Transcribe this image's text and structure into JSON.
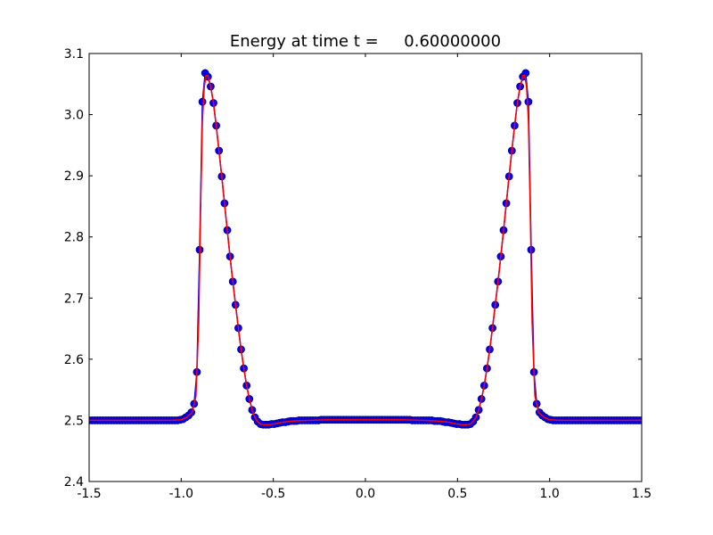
{
  "chart_data": {
    "type": "line",
    "title": "Energy at time t =     0.60000000",
    "xlabel": "",
    "ylabel": "",
    "xlim": [
      -1.5,
      1.5
    ],
    "ylim": [
      2.4,
      3.1
    ],
    "grid": false,
    "x_ticks": [
      "-1.5",
      "-1.0",
      "-0.5",
      "0.0",
      "0.5",
      "1.0",
      "1.5"
    ],
    "y_ticks": [
      "2.4",
      "2.5",
      "2.6",
      "2.7",
      "2.8",
      "2.9",
      "3.0",
      "3.1"
    ],
    "x_tick_values": [
      -1.5,
      -1.0,
      -0.5,
      0.0,
      0.5,
      1.0,
      1.5
    ],
    "y_tick_values": [
      2.4,
      2.5,
      2.6,
      2.7,
      2.8,
      2.9,
      3.0,
      3.1
    ],
    "colors": {
      "markers_fill": "#0000ff",
      "markers_edge": "#000080",
      "reference_line": "#ff0000",
      "line_blue": "#0000ff"
    },
    "series": [
      {
        "style": "line+markers",
        "color": "#0000ff",
        "points": [
          [
            -1.5,
            2.5
          ],
          [
            -1.485,
            2.5
          ],
          [
            -1.47,
            2.5
          ],
          [
            -1.455,
            2.5
          ],
          [
            -1.44,
            2.5
          ],
          [
            -1.425,
            2.5
          ],
          [
            -1.41,
            2.5
          ],
          [
            -1.395,
            2.5
          ],
          [
            -1.38,
            2.5
          ],
          [
            -1.365,
            2.5
          ],
          [
            -1.35,
            2.5
          ],
          [
            -1.335,
            2.5
          ],
          [
            -1.32,
            2.5
          ],
          [
            -1.305,
            2.5
          ],
          [
            -1.29,
            2.5
          ],
          [
            -1.275,
            2.5
          ],
          [
            -1.26,
            2.5
          ],
          [
            -1.245,
            2.5
          ],
          [
            -1.23,
            2.5
          ],
          [
            -1.215,
            2.5
          ],
          [
            -1.2,
            2.5
          ],
          [
            -1.185,
            2.5
          ],
          [
            -1.17,
            2.5
          ],
          [
            -1.155,
            2.5
          ],
          [
            -1.14,
            2.5
          ],
          [
            -1.125,
            2.5
          ],
          [
            -1.11,
            2.5
          ],
          [
            -1.095,
            2.5
          ],
          [
            -1.08,
            2.5
          ],
          [
            -1.065,
            2.5
          ],
          [
            -1.05,
            2.5
          ],
          [
            -1.035,
            2.5
          ],
          [
            -1.02,
            2.5
          ],
          [
            -1.005,
            2.501
          ],
          [
            -0.99,
            2.502
          ],
          [
            -0.975,
            2.505
          ],
          [
            -0.96,
            2.508
          ],
          [
            -0.945,
            2.513
          ],
          [
            -0.93,
            2.527
          ],
          [
            -0.915,
            2.579
          ],
          [
            -0.9,
            2.779
          ],
          [
            -0.885,
            3.021
          ],
          [
            -0.87,
            3.068
          ],
          [
            -0.855,
            3.062
          ],
          [
            -0.84,
            3.046
          ],
          [
            -0.825,
            3.019
          ],
          [
            -0.81,
            2.982
          ],
          [
            -0.795,
            2.941
          ],
          [
            -0.78,
            2.899
          ],
          [
            -0.765,
            2.855
          ],
          [
            -0.75,
            2.811
          ],
          [
            -0.735,
            2.768
          ],
          [
            -0.72,
            2.727
          ],
          [
            -0.705,
            2.689
          ],
          [
            -0.69,
            2.651
          ],
          [
            -0.675,
            2.616
          ],
          [
            -0.66,
            2.585
          ],
          [
            -0.645,
            2.557
          ],
          [
            -0.63,
            2.535
          ],
          [
            -0.615,
            2.517
          ],
          [
            -0.6,
            2.505
          ],
          [
            -0.585,
            2.498
          ],
          [
            -0.57,
            2.494
          ],
          [
            -0.555,
            2.493
          ],
          [
            -0.54,
            2.493
          ],
          [
            -0.525,
            2.493
          ],
          [
            -0.51,
            2.494
          ],
          [
            -0.495,
            2.494
          ],
          [
            -0.48,
            2.495
          ],
          [
            -0.465,
            2.496
          ],
          [
            -0.45,
            2.497
          ],
          [
            -0.435,
            2.497
          ],
          [
            -0.42,
            2.498
          ],
          [
            -0.405,
            2.499
          ],
          [
            -0.39,
            2.499
          ],
          [
            -0.375,
            2.499
          ],
          [
            -0.36,
            2.5
          ],
          [
            -0.345,
            2.5
          ],
          [
            -0.33,
            2.5
          ],
          [
            -0.315,
            2.5
          ],
          [
            -0.3,
            2.5
          ],
          [
            -0.285,
            2.5
          ],
          [
            -0.27,
            2.5
          ],
          [
            -0.255,
            2.5
          ],
          [
            -0.24,
            2.501
          ],
          [
            -0.225,
            2.501
          ],
          [
            -0.21,
            2.501
          ],
          [
            -0.195,
            2.501
          ],
          [
            -0.18,
            2.501
          ],
          [
            -0.165,
            2.501
          ],
          [
            -0.15,
            2.501
          ],
          [
            -0.135,
            2.501
          ],
          [
            -0.12,
            2.501
          ],
          [
            -0.105,
            2.501
          ],
          [
            -0.09,
            2.501
          ],
          [
            -0.075,
            2.501
          ],
          [
            -0.06,
            2.501
          ],
          [
            -0.045,
            2.501
          ],
          [
            -0.03,
            2.501
          ],
          [
            -0.015,
            2.501
          ],
          [
            0.0,
            2.501
          ],
          [
            0.015,
            2.501
          ],
          [
            0.03,
            2.501
          ],
          [
            0.045,
            2.501
          ],
          [
            0.06,
            2.501
          ],
          [
            0.075,
            2.501
          ],
          [
            0.09,
            2.501
          ],
          [
            0.105,
            2.501
          ],
          [
            0.12,
            2.501
          ],
          [
            0.135,
            2.501
          ],
          [
            0.15,
            2.501
          ],
          [
            0.165,
            2.501
          ],
          [
            0.18,
            2.501
          ],
          [
            0.195,
            2.501
          ],
          [
            0.21,
            2.501
          ],
          [
            0.225,
            2.501
          ],
          [
            0.24,
            2.501
          ],
          [
            0.255,
            2.5
          ],
          [
            0.27,
            2.5
          ],
          [
            0.285,
            2.5
          ],
          [
            0.3,
            2.5
          ],
          [
            0.315,
            2.5
          ],
          [
            0.33,
            2.5
          ],
          [
            0.345,
            2.5
          ],
          [
            0.36,
            2.5
          ],
          [
            0.375,
            2.499
          ],
          [
            0.39,
            2.499
          ],
          [
            0.405,
            2.499
          ],
          [
            0.42,
            2.498
          ],
          [
            0.435,
            2.497
          ],
          [
            0.45,
            2.497
          ],
          [
            0.465,
            2.496
          ],
          [
            0.48,
            2.495
          ],
          [
            0.495,
            2.494
          ],
          [
            0.51,
            2.494
          ],
          [
            0.525,
            2.493
          ],
          [
            0.54,
            2.493
          ],
          [
            0.555,
            2.493
          ],
          [
            0.57,
            2.494
          ],
          [
            0.585,
            2.498
          ],
          [
            0.6,
            2.505
          ],
          [
            0.615,
            2.517
          ],
          [
            0.63,
            2.535
          ],
          [
            0.645,
            2.557
          ],
          [
            0.66,
            2.585
          ],
          [
            0.675,
            2.616
          ],
          [
            0.69,
            2.651
          ],
          [
            0.705,
            2.689
          ],
          [
            0.72,
            2.727
          ],
          [
            0.735,
            2.768
          ],
          [
            0.75,
            2.811
          ],
          [
            0.765,
            2.855
          ],
          [
            0.78,
            2.899
          ],
          [
            0.795,
            2.941
          ],
          [
            0.81,
            2.982
          ],
          [
            0.825,
            3.019
          ],
          [
            0.84,
            3.046
          ],
          [
            0.855,
            3.062
          ],
          [
            0.87,
            3.068
          ],
          [
            0.885,
            3.021
          ],
          [
            0.9,
            2.779
          ],
          [
            0.915,
            2.579
          ],
          [
            0.93,
            2.527
          ],
          [
            0.945,
            2.513
          ],
          [
            0.96,
            2.508
          ],
          [
            0.975,
            2.505
          ],
          [
            0.99,
            2.502
          ],
          [
            1.005,
            2.501
          ],
          [
            1.02,
            2.5
          ],
          [
            1.035,
            2.5
          ],
          [
            1.05,
            2.5
          ],
          [
            1.065,
            2.5
          ],
          [
            1.08,
            2.5
          ],
          [
            1.095,
            2.5
          ],
          [
            1.11,
            2.5
          ],
          [
            1.125,
            2.5
          ],
          [
            1.14,
            2.5
          ],
          [
            1.155,
            2.5
          ],
          [
            1.17,
            2.5
          ],
          [
            1.185,
            2.5
          ],
          [
            1.2,
            2.5
          ],
          [
            1.215,
            2.5
          ],
          [
            1.23,
            2.5
          ],
          [
            1.245,
            2.5
          ],
          [
            1.26,
            2.5
          ],
          [
            1.275,
            2.5
          ],
          [
            1.29,
            2.5
          ],
          [
            1.305,
            2.5
          ],
          [
            1.32,
            2.5
          ],
          [
            1.335,
            2.5
          ],
          [
            1.35,
            2.5
          ],
          [
            1.365,
            2.5
          ],
          [
            1.38,
            2.5
          ],
          [
            1.395,
            2.5
          ],
          [
            1.41,
            2.5
          ],
          [
            1.425,
            2.5
          ],
          [
            1.44,
            2.5
          ],
          [
            1.455,
            2.5
          ],
          [
            1.47,
            2.5
          ],
          [
            1.485,
            2.5
          ],
          [
            1.5,
            2.5
          ]
        ]
      },
      {
        "style": "line",
        "color": "#ff0000",
        "points": [
          [
            -1.5,
            2.5
          ],
          [
            -1.05,
            2.5
          ],
          [
            -1.0,
            2.501
          ],
          [
            -0.97,
            2.505
          ],
          [
            -0.94,
            2.513
          ],
          [
            -0.92,
            2.54
          ],
          [
            -0.905,
            2.66
          ],
          [
            -0.895,
            2.84
          ],
          [
            -0.885,
            2.99
          ],
          [
            -0.875,
            3.045
          ],
          [
            -0.865,
            3.064
          ],
          [
            -0.855,
            3.064
          ],
          [
            -0.84,
            3.046
          ],
          [
            -0.825,
            3.019
          ],
          [
            -0.81,
            2.982
          ],
          [
            -0.795,
            2.941
          ],
          [
            -0.78,
            2.899
          ],
          [
            -0.765,
            2.855
          ],
          [
            -0.75,
            2.811
          ],
          [
            -0.735,
            2.768
          ],
          [
            -0.72,
            2.727
          ],
          [
            -0.705,
            2.689
          ],
          [
            -0.69,
            2.651
          ],
          [
            -0.675,
            2.616
          ],
          [
            -0.66,
            2.585
          ],
          [
            -0.645,
            2.557
          ],
          [
            -0.63,
            2.535
          ],
          [
            -0.615,
            2.517
          ],
          [
            -0.6,
            2.505
          ],
          [
            -0.585,
            2.498
          ],
          [
            -0.57,
            2.494
          ],
          [
            -0.555,
            2.493
          ],
          [
            -0.525,
            2.493
          ],
          [
            -0.495,
            2.494
          ],
          [
            -0.45,
            2.497
          ],
          [
            -0.39,
            2.499
          ],
          [
            -0.3,
            2.5
          ],
          [
            -0.2,
            2.501
          ],
          [
            0.0,
            2.501
          ],
          [
            0.2,
            2.501
          ],
          [
            0.3,
            2.5
          ],
          [
            0.39,
            2.499
          ],
          [
            0.45,
            2.497
          ],
          [
            0.495,
            2.494
          ],
          [
            0.525,
            2.493
          ],
          [
            0.555,
            2.493
          ],
          [
            0.57,
            2.494
          ],
          [
            0.585,
            2.498
          ],
          [
            0.6,
            2.505
          ],
          [
            0.615,
            2.517
          ],
          [
            0.63,
            2.535
          ],
          [
            0.645,
            2.557
          ],
          [
            0.66,
            2.585
          ],
          [
            0.675,
            2.616
          ],
          [
            0.69,
            2.651
          ],
          [
            0.705,
            2.689
          ],
          [
            0.72,
            2.727
          ],
          [
            0.735,
            2.768
          ],
          [
            0.75,
            2.811
          ],
          [
            0.765,
            2.855
          ],
          [
            0.78,
            2.899
          ],
          [
            0.795,
            2.941
          ],
          [
            0.81,
            2.982
          ],
          [
            0.825,
            3.019
          ],
          [
            0.84,
            3.046
          ],
          [
            0.855,
            3.064
          ],
          [
            0.865,
            3.064
          ],
          [
            0.875,
            3.045
          ],
          [
            0.885,
            2.99
          ],
          [
            0.895,
            2.84
          ],
          [
            0.905,
            2.66
          ],
          [
            0.92,
            2.54
          ],
          [
            0.94,
            2.513
          ],
          [
            0.97,
            2.505
          ],
          [
            1.0,
            2.501
          ],
          [
            1.05,
            2.5
          ],
          [
            1.5,
            2.5
          ]
        ]
      }
    ]
  }
}
